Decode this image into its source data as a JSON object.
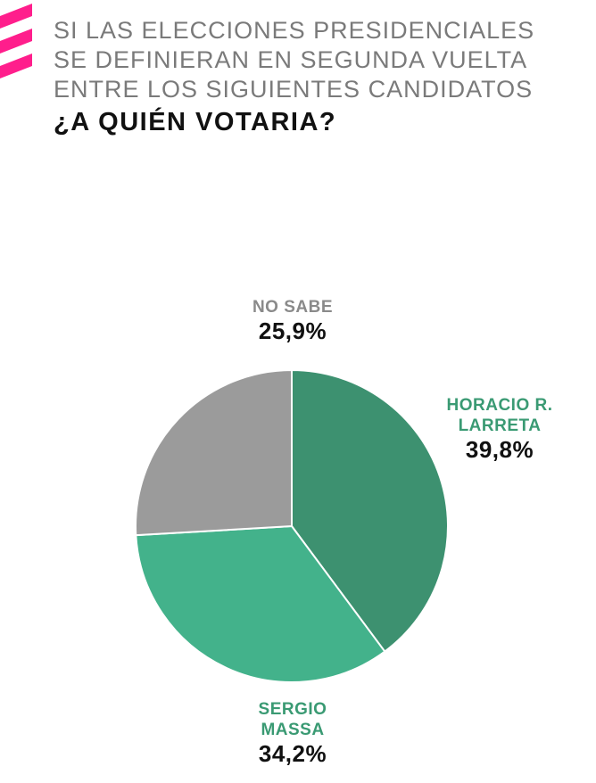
{
  "header": {
    "subtitle_lines": [
      "SI LAS ELECCIONES PRESIDENCIALES",
      "SE DEFINIERAN EN SEGUNDA VUELTA",
      "ENTRE LOS SIGUIENTES CANDIDATOS"
    ],
    "title": "¿A QUIÉN VOTARIA?"
  },
  "colors": {
    "accent": "#ff1e8c",
    "subtitle": "#7a7a7a",
    "larreta": "#3d9170",
    "massa": "#43b28b",
    "no_sabe": "#9b9b9b",
    "label_larreta": "#3a9a73",
    "label_massa": "#3a9a73",
    "label_no_sabe": "#8a8a8a"
  },
  "chart_data": {
    "type": "pie",
    "title": "¿A QUIÉN VOTARIA?",
    "slices": [
      {
        "name_lines": [
          "HORACIO R.",
          "LARRETA"
        ],
        "value": 39.8,
        "value_label": "39,8%"
      },
      {
        "name_lines": [
          "SERGIO",
          "MASSA"
        ],
        "value": 34.2,
        "value_label": "34,2%"
      },
      {
        "name_lines": [
          "NO SABE"
        ],
        "value": 25.9,
        "value_label": "25,9%"
      }
    ]
  }
}
